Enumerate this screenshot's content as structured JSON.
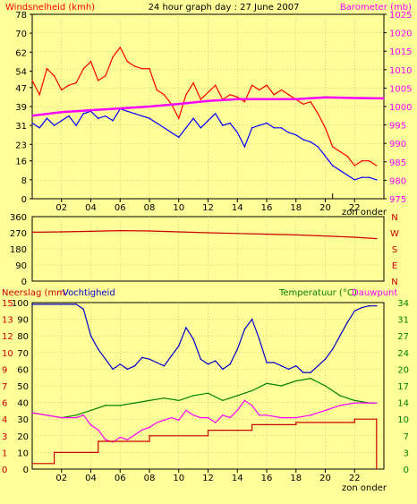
{
  "header": {
    "left_label": "Windsnelheid (kmh)",
    "title": "24 hour graph day : 27 June 2007",
    "right_label": "Barometer (mb)"
  },
  "colors": {
    "background": "#ffff99",
    "wind_gust": "#ff0000",
    "wind_avg": "#0000ff",
    "barometer": "#ff00ff",
    "winddir": "#cc0000",
    "humidity": "#0000cc",
    "temperature": "#008000",
    "dewpoint": "#ff00ff",
    "rain": "#cc0000",
    "right_axis_text": "#ff00ff",
    "temp_axis_text": "#008000",
    "day_marker": "#000000"
  },
  "footer": {
    "zon_onder": "zon onder"
  },
  "chart_data": [
    {
      "type": "line",
      "id": "wind_baro",
      "title": "24 hour graph day : 27 June 2007",
      "ylabel": "Windsnelheid (kmh)",
      "y2label": "Barometer (mb)",
      "x_ticks": [
        "02",
        "04",
        "06",
        "08",
        "10",
        "12",
        "14",
        "16",
        "18",
        "20",
        "22"
      ],
      "x_range": [
        0,
        24
      ],
      "y_ticks": [
        0,
        8,
        16,
        23,
        31,
        39,
        47,
        54,
        62,
        70,
        78
      ],
      "ylim": [
        0,
        78
      ],
      "y2_ticks": [
        975,
        980,
        985,
        990,
        995,
        1000,
        1005,
        1010,
        1015,
        1020,
        1025
      ],
      "y2lim": [
        975,
        1025
      ],
      "annotation": "zon onder",
      "series": [
        {
          "name": "Windvlaag",
          "axis": "left",
          "x": [
            0,
            0.5,
            1,
            1.5,
            2,
            2.5,
            3,
            3.5,
            4,
            4.5,
            5,
            5.5,
            6,
            6.5,
            7,
            7.5,
            8,
            8.5,
            9,
            9.5,
            10,
            10.5,
            11,
            11.5,
            12,
            12.5,
            13,
            13.5,
            14,
            14.5,
            15,
            15.5,
            16,
            16.5,
            17,
            17.5,
            18,
            18.5,
            19,
            19.5,
            20,
            20.5,
            21,
            21.5,
            22,
            22.5,
            23,
            23.5
          ],
          "values": [
            50,
            44,
            55,
            52,
            46,
            48,
            49,
            55,
            58,
            50,
            52,
            60,
            64,
            58,
            56,
            55,
            55,
            46,
            44,
            40,
            34,
            44,
            49,
            42,
            45,
            48,
            42,
            44,
            43,
            41,
            48,
            46,
            48,
            44,
            46,
            44,
            42,
            40,
            41,
            36,
            30,
            22,
            20,
            18,
            14,
            16,
            16,
            14
          ]
        },
        {
          "name": "Windsnelheid",
          "axis": "left",
          "x": [
            0,
            0.5,
            1,
            1.5,
            2,
            2.5,
            3,
            3.5,
            4,
            4.5,
            5,
            5.5,
            6,
            6.5,
            7,
            7.5,
            8,
            8.5,
            9,
            9.5,
            10,
            10.5,
            11,
            11.5,
            12,
            12.5,
            13,
            13.5,
            14,
            14.5,
            15,
            15.5,
            16,
            16.5,
            17,
            17.5,
            18,
            18.5,
            19,
            19.5,
            20,
            20.5,
            21,
            21.5,
            22,
            22.5,
            23,
            23.5
          ],
          "values": [
            32,
            30,
            34,
            31,
            33,
            35,
            31,
            36,
            37,
            34,
            35,
            33,
            38,
            37,
            36,
            35,
            34,
            32,
            30,
            28,
            26,
            30,
            34,
            30,
            33,
            36,
            31,
            32,
            28,
            22,
            30,
            31,
            32,
            30,
            30,
            28,
            27,
            25,
            24,
            22,
            18,
            14,
            12,
            10,
            8,
            9,
            9,
            8
          ]
        },
        {
          "name": "Barometer",
          "axis": "right",
          "x": [
            0,
            2,
            4,
            6,
            8,
            10,
            12,
            14,
            16,
            18,
            20,
            22,
            24
          ],
          "values": [
            997.5,
            998.5,
            999,
            999.5,
            1000,
            1000.7,
            1001.5,
            1002,
            1002,
            1002,
            1002.5,
            1002.3,
            1002.2
          ]
        }
      ]
    },
    {
      "type": "line",
      "id": "winddir",
      "y_ticks": [
        0,
        90,
        180,
        270,
        360
      ],
      "ylim": [
        0,
        360
      ],
      "y2_labels": [
        "N",
        "W",
        "S",
        "E",
        "N"
      ],
      "series": [
        {
          "name": "Windrichting",
          "x": [
            0,
            2,
            4,
            6,
            8,
            10,
            12,
            14,
            16,
            18,
            20,
            22,
            23.5
          ],
          "values": [
            273,
            275,
            278,
            282,
            280,
            275,
            270,
            266,
            262,
            258,
            252,
            245,
            237
          ]
        }
      ]
    },
    {
      "type": "line",
      "id": "rain_hum_temp",
      "ylabel": "Neerslag (mm",
      "ylabel2": "Vochtigheid",
      "y2label": "Temperatuur (°C)",
      "y2label_b": "Dauwpunt",
      "y_ticks_rain": [
        0,
        1,
        3,
        4,
        6,
        7,
        9,
        10,
        12,
        13,
        15
      ],
      "y_ticks_hum": [
        0,
        10,
        20,
        30,
        40,
        50,
        60,
        70,
        80,
        90,
        100
      ],
      "y_ticks_temp": [
        0,
        3,
        7,
        10,
        14,
        17,
        20,
        24,
        27,
        31,
        34
      ],
      "ylim_hum": [
        0,
        100
      ],
      "ylim_temp": [
        0,
        34
      ],
      "ylim_rain": [
        0,
        15
      ],
      "series": [
        {
          "name": "Vochtigheid",
          "axis": "hum",
          "x": [
            0,
            1,
            2,
            3,
            3.5,
            4,
            4.5,
            5,
            5.5,
            6,
            6.5,
            7,
            7.5,
            8,
            8.5,
            9,
            9.5,
            10,
            10.5,
            11,
            11.5,
            12,
            12.5,
            13,
            13.5,
            14,
            14.5,
            15,
            15.5,
            16,
            16.5,
            17,
            17.5,
            18,
            18.5,
            19,
            19.5,
            20,
            20.5,
            21,
            21.5,
            22,
            22.5,
            23,
            23.5
          ],
          "values": [
            99,
            99,
            99,
            99,
            96,
            80,
            72,
            66,
            60,
            63,
            60,
            62,
            67,
            66,
            64,
            62,
            68,
            74,
            85,
            78,
            66,
            63,
            65,
            60,
            63,
            72,
            84,
            90,
            78,
            64,
            64,
            62,
            60,
            62,
            58,
            58,
            62,
            66,
            72,
            80,
            88,
            95,
            97,
            98,
            98
          ]
        },
        {
          "name": "Temperatuur",
          "axis": "temp",
          "x": [
            0,
            1,
            2,
            3,
            4,
            5,
            6,
            7,
            8,
            9,
            10,
            11,
            12,
            13,
            14,
            15,
            16,
            17,
            18,
            19,
            20,
            21,
            22,
            23,
            23.5
          ],
          "values": [
            11.5,
            11,
            10.5,
            11,
            12,
            13,
            13,
            13.5,
            14,
            14.5,
            14,
            15,
            15.5,
            14,
            15,
            16,
            17.5,
            17,
            18,
            18.5,
            17,
            15,
            14,
            13.5,
            13.5
          ]
        },
        {
          "name": "Dauwpunt",
          "axis": "temp",
          "x": [
            0,
            1,
            2,
            3,
            3.5,
            4,
            4.5,
            5,
            5.5,
            6,
            6.5,
            7,
            7.5,
            8,
            8.5,
            9,
            9.5,
            10,
            10.5,
            11,
            11.5,
            12,
            12.5,
            13,
            13.5,
            14,
            14.5,
            15,
            15.5,
            16,
            17,
            18,
            19,
            20,
            21,
            22,
            23,
            23.5
          ],
          "values": [
            11.5,
            11,
            10.5,
            10.5,
            11,
            9,
            8,
            6,
            5.5,
            6.5,
            6,
            7,
            8,
            8.5,
            9.5,
            10,
            10.5,
            10,
            12,
            11,
            10.5,
            10.5,
            9.5,
            11,
            10.5,
            12,
            14,
            13,
            11,
            11,
            10.5,
            10.5,
            11,
            12,
            13,
            13.5,
            13.5,
            13.5
          ]
        },
        {
          "name": "Neerslag",
          "axis": "rain",
          "x": [
            0,
            1.5,
            1.5,
            4.5,
            4.5,
            8,
            8,
            12,
            12,
            15,
            15,
            18,
            18,
            22,
            22,
            23.5,
            23.5
          ],
          "values": [
            0.5,
            0.5,
            1.5,
            1.5,
            2.5,
            2.5,
            3,
            3,
            3.5,
            3.5,
            4,
            4,
            4.2,
            4.2,
            4.5,
            4.5,
            0
          ]
        }
      ]
    }
  ]
}
